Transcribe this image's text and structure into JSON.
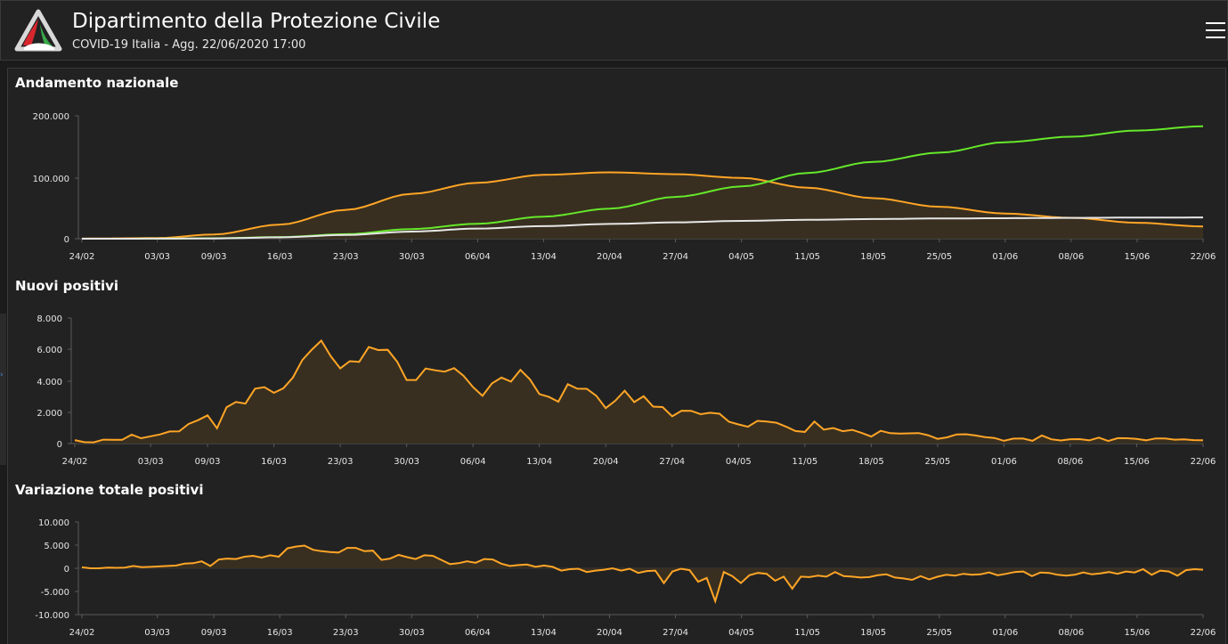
{
  "header": {
    "title": "Dipartimento della Protezione Civile",
    "subtitle": "COVID-19 Italia - Agg. 22/06/2020 17:00"
  },
  "colors": {
    "orange": "#ffa526",
    "green": "#66e82a",
    "white": "#e6e6e6",
    "area_fill": "#3b3120"
  },
  "icons": {
    "logo": "protezione-civile-logo",
    "menu": "hamburger-menu-icon"
  },
  "chart_data": [
    {
      "type": "area",
      "title": "Andamento nazionale",
      "x_ticks": [
        "24/02",
        "03/03",
        "09/03",
        "16/03",
        "23/03",
        "30/03",
        "06/04",
        "13/04",
        "20/04",
        "27/04",
        "04/05",
        "11/05",
        "18/05",
        "25/05",
        "01/06",
        "08/06",
        "15/06",
        "22/06"
      ],
      "y_ticks": [
        "200.000",
        "100.000",
        "0"
      ],
      "ylim": [
        0,
        200000
      ],
      "x_days": [
        0,
        8,
        14,
        21,
        28,
        35,
        42,
        49,
        56,
        63,
        70,
        77,
        84,
        91,
        98,
        105,
        112,
        119
      ],
      "series": [
        {
          "color": "#ffa526",
          "values": [
            200,
            1000,
            7000,
            23000,
            47000,
            73000,
            91000,
            104000,
            108000,
            105000,
            99000,
            83000,
            66000,
            52000,
            41000,
            34000,
            26000,
            20000
          ]
        },
        {
          "color": "#66e82a",
          "values": [
            0,
            100,
            700,
            2700,
            7400,
            15700,
            24400,
            36000,
            48900,
            68000,
            85000,
            107000,
            125000,
            140000,
            157000,
            166000,
            176000,
            183000
          ]
        },
        {
          "color": "#e6e6e6",
          "values": [
            0,
            80,
            460,
            2200,
            6100,
            11600,
            16500,
            20500,
            24000,
            26600,
            29000,
            30700,
            32000,
            32900,
            33400,
            33900,
            34400,
            34600
          ]
        }
      ]
    },
    {
      "type": "area",
      "title": "Nuovi positivi",
      "x_ticks": [
        "24/02",
        "03/03",
        "09/03",
        "16/03",
        "23/03",
        "30/03",
        "06/04",
        "13/04",
        "20/04",
        "27/04",
        "04/05",
        "11/05",
        "18/05",
        "25/05",
        "01/06",
        "08/06",
        "15/06",
        "22/06"
      ],
      "y_ticks": [
        "8.000",
        "6.000",
        "4.000",
        "2.000",
        "0"
      ],
      "ylim": [
        0,
        8000
      ],
      "values": [
        221,
        93,
        78,
        250,
        238,
        240,
        566,
        342,
        466,
        587,
        769,
        778,
        1247,
        1492,
        1797,
        977,
        2313,
        2651,
        2547,
        3497,
        3590,
        3233,
        3526,
        4207,
        5322,
        5986,
        6557,
        5560,
        4789,
        5249,
        5210,
        6153,
        5959,
        5974,
        5217,
        4050,
        4053,
        4782,
        4668,
        4585,
        4805,
        4316,
        3599,
        3039,
        3836,
        4204,
        3951,
        4694,
        4092,
        3153,
        2972,
        2667,
        3786,
        3493,
        3491,
        3047,
        2256,
        2729,
        3370,
        2646,
        3021,
        2357,
        2324,
        1739,
        2091,
        2086,
        1872,
        1965,
        1900,
        1389,
        1221,
        1075,
        1444,
        1401,
        1327,
        1083,
        802,
        744,
        1402,
        888,
        992,
        789,
        875,
        675,
        451,
        813,
        665,
        642,
        652,
        669,
        531,
        300,
        397,
        584,
        593,
        516,
        416,
        355,
        178,
        318,
        321,
        177,
        518,
        270,
        197,
        280,
        283,
        202,
        379,
        163,
        346,
        338,
        301,
        210,
        328,
        331,
        251,
        264,
        224,
        218
      ]
    },
    {
      "type": "area",
      "title": "Variazione totale positivi",
      "x_ticks": [
        "24/02",
        "03/03",
        "09/03",
        "16/03",
        "23/03",
        "30/03",
        "06/04",
        "13/04",
        "20/04",
        "27/04",
        "04/05",
        "11/05",
        "18/05",
        "25/05",
        "01/06",
        "08/06",
        "15/06",
        "22/06"
      ],
      "y_ticks": [
        "10.000",
        "5.000",
        "0",
        "-5.000",
        "-10.000"
      ],
      "ylim": [
        -10000,
        10000
      ],
      "values": [
        221,
        0,
        0,
        150,
        100,
        150,
        500,
        250,
        300,
        400,
        500,
        600,
        1000,
        1100,
        1500,
        500,
        1900,
        2100,
        2000,
        2500,
        2700,
        2300,
        2800,
        2500,
        4300,
        4700,
        4900,
        4000,
        3700,
        3500,
        3400,
        4400,
        4400,
        3700,
        3800,
        1800,
        2100,
        2900,
        2400,
        2000,
        2800,
        2700,
        1800,
        900,
        1100,
        1500,
        1200,
        2000,
        1900,
        1000,
        500,
        700,
        800,
        300,
        600,
        300,
        -500,
        -200,
        -100,
        -800,
        -500,
        -300,
        0,
        -500,
        -100,
        -1000,
        -600,
        -500,
        -3200,
        -700,
        -100,
        -400,
        -2900,
        -2100,
        -7100,
        -800,
        -1700,
        -3200,
        -1500,
        -1000,
        -1200,
        -2700,
        -1800,
        -4400,
        -1800,
        -1900,
        -1600,
        -1800,
        -800,
        -1700,
        -1800,
        -2000,
        -1900,
        -1500,
        -1300,
        -2000,
        -2200,
        -2500,
        -1700,
        -2400,
        -1800,
        -1400,
        -1600,
        -1200,
        -1400,
        -1300,
        -900,
        -1500,
        -1200,
        -800,
        -700,
        -1700,
        -900,
        -1000,
        -1400,
        -1600,
        -1400,
        -900,
        -1300,
        -1100,
        -800,
        -1200,
        -700,
        -900,
        -200,
        -1400,
        -500,
        -700,
        -1600,
        -400,
        -200,
        -300
      ]
    }
  ]
}
